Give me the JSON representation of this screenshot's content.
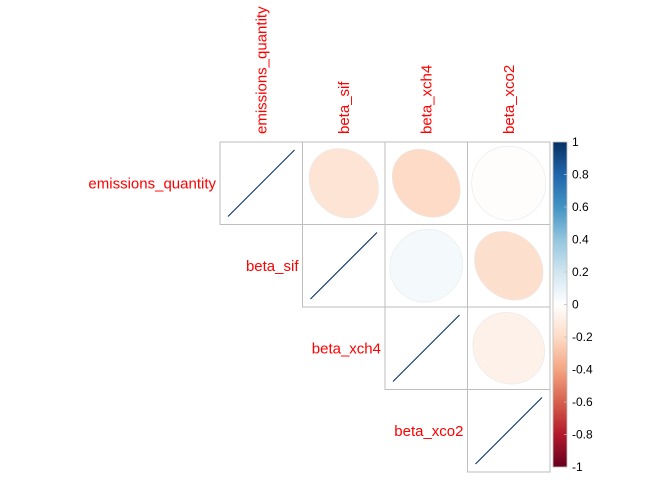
{
  "chart_data": {
    "type": "heatmap",
    "subtype": "correlation-matrix-upper",
    "variables": [
      "emissions_quantity",
      "beta_sif",
      "beta_xch4",
      "beta_xco2"
    ],
    "matrix": [
      [
        1.0,
        -0.15,
        -0.2,
        -0.01
      ],
      [
        -0.15,
        1.0,
        0.05,
        -0.18
      ],
      [
        -0.2,
        0.05,
        1.0,
        -0.08
      ],
      [
        -0.01,
        -0.18,
        -0.08,
        1.0
      ]
    ],
    "diagonal_method": "line",
    "offdiagonal_method": "ellipse",
    "colorbar": {
      "range": [
        -1,
        1
      ],
      "ticks": [
        "1",
        "0.8",
        "0.6",
        "0.4",
        "0.2",
        "0",
        "-0.2",
        "-0.4",
        "-0.6",
        "-0.8",
        "-1"
      ],
      "colors": [
        "#67001F",
        "#B2182B",
        "#D6604D",
        "#F4A582",
        "#FDDBC7",
        "#FFFFFF",
        "#D1E5F0",
        "#92C5DE",
        "#4393C3",
        "#2166AC",
        "#053061"
      ]
    },
    "label_color": "#FF0000"
  }
}
